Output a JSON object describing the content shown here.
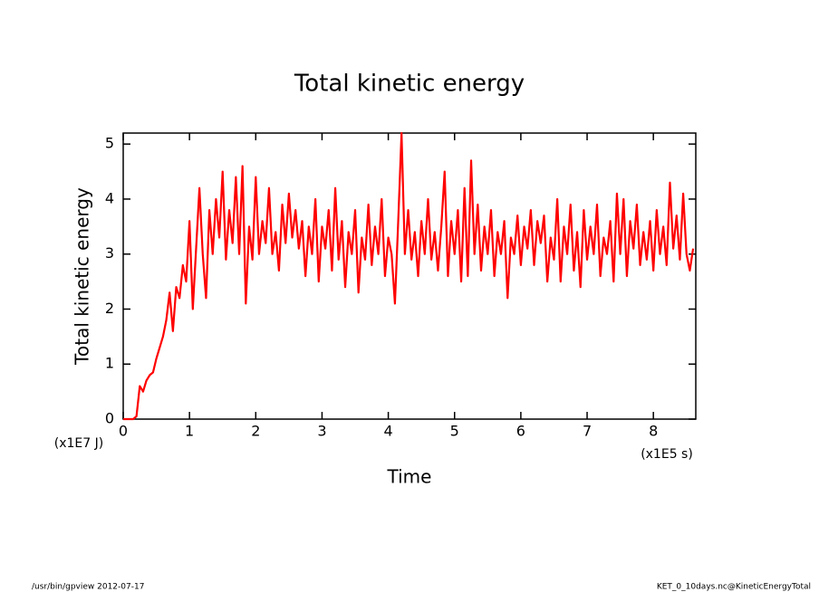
{
  "chart_data": {
    "type": "line",
    "title": "Total kinetic energy",
    "x_label": "Time",
    "y_label": "Total kinetic energy",
    "x_unit": "(x1E5 s)",
    "y_unit": "(x1E7 J)",
    "footer_left": "/usr/bin/gpview  2012-07-17",
    "footer_right": "KET_0_10days.nc@KineticEnergyTotal",
    "color": "#ff0000",
    "xlim": [
      0,
      8.64
    ],
    "ylim": [
      0,
      5.2
    ],
    "xticks": [
      0,
      1,
      2,
      3,
      4,
      5,
      6,
      7,
      8
    ],
    "yticks": [
      0,
      1,
      2,
      3,
      4,
      5
    ],
    "x": [
      0,
      0.05,
      0.1,
      0.15,
      0.2,
      0.25,
      0.3,
      0.35,
      0.4,
      0.45,
      0.5,
      0.55,
      0.6,
      0.65,
      0.7,
      0.75,
      0.8,
      0.85,
      0.9,
      0.95,
      1,
      1.05,
      1.1,
      1.15,
      1.2,
      1.25,
      1.3,
      1.35,
      1.4,
      1.45,
      1.5,
      1.55,
      1.6,
      1.65,
      1.7,
      1.75,
      1.8,
      1.85,
      1.9,
      1.95,
      2,
      2.05,
      2.1,
      2.15,
      2.2,
      2.25,
      2.3,
      2.35,
      2.4,
      2.45,
      2.5,
      2.55,
      2.6,
      2.65,
      2.7,
      2.75,
      2.8,
      2.85,
      2.9,
      2.95,
      3,
      3.05,
      3.1,
      3.15,
      3.2,
      3.25,
      3.3,
      3.35,
      3.4,
      3.45,
      3.5,
      3.55,
      3.6,
      3.65,
      3.7,
      3.75,
      3.8,
      3.85,
      3.9,
      3.95,
      4,
      4.05,
      4.1,
      4.15,
      4.2,
      4.25,
      4.3,
      4.35,
      4.4,
      4.45,
      4.5,
      4.55,
      4.6,
      4.65,
      4.7,
      4.75,
      4.8,
      4.85,
      4.9,
      4.95,
      5,
      5.05,
      5.1,
      5.15,
      5.2,
      5.25,
      5.3,
      5.35,
      5.4,
      5.45,
      5.5,
      5.55,
      5.6,
      5.65,
      5.7,
      5.75,
      5.8,
      5.85,
      5.9,
      5.95,
      6,
      6.05,
      6.1,
      6.15,
      6.2,
      6.25,
      6.3,
      6.35,
      6.4,
      6.45,
      6.5,
      6.55,
      6.6,
      6.65,
      6.7,
      6.75,
      6.8,
      6.85,
      6.9,
      6.95,
      7,
      7.05,
      7.1,
      7.15,
      7.2,
      7.25,
      7.3,
      7.35,
      7.4,
      7.45,
      7.5,
      7.55,
      7.6,
      7.65,
      7.7,
      7.75,
      7.8,
      7.85,
      7.9,
      7.95,
      8,
      8.05,
      8.1,
      8.15,
      8.2,
      8.25,
      8.3,
      8.35,
      8.4,
      8.45,
      8.5,
      8.55,
      8.6
    ],
    "values": [
      0,
      0,
      0,
      0,
      0.05,
      0.6,
      0.5,
      0.7,
      0.8,
      0.85,
      1.1,
      1.3,
      1.5,
      1.8,
      2.3,
      1.6,
      2.4,
      2.2,
      2.8,
      2.5,
      3.6,
      2.0,
      3.1,
      4.2,
      3.0,
      2.2,
      3.8,
      3.0,
      4.0,
      3.3,
      4.5,
      2.9,
      3.8,
      3.2,
      4.4,
      3.0,
      4.6,
      2.1,
      3.5,
      2.9,
      4.4,
      3.0,
      3.6,
      3.2,
      4.2,
      3.0,
      3.4,
      2.7,
      3.9,
      3.2,
      4.1,
      3.3,
      3.8,
      3.1,
      3.6,
      2.6,
      3.5,
      3.0,
      4.0,
      2.5,
      3.5,
      3.1,
      3.8,
      2.7,
      4.2,
      2.9,
      3.6,
      2.4,
      3.4,
      3.0,
      3.8,
      2.3,
      3.3,
      2.9,
      3.9,
      2.8,
      3.5,
      3.0,
      4.0,
      2.6,
      3.3,
      3.0,
      2.1,
      3.6,
      5.2,
      3.0,
      3.8,
      2.9,
      3.4,
      2.6,
      3.6,
      3.0,
      4.0,
      2.9,
      3.4,
      2.7,
      3.5,
      4.5,
      2.6,
      3.6,
      3.0,
      3.8,
      2.5,
      4.2,
      2.6,
      4.7,
      3.0,
      3.9,
      2.7,
      3.5,
      3.0,
      3.8,
      2.6,
      3.4,
      3.0,
      3.6,
      2.2,
      3.3,
      3.0,
      3.7,
      2.8,
      3.5,
      3.1,
      3.8,
      2.8,
      3.6,
      3.2,
      3.7,
      2.5,
      3.3,
      2.9,
      4.0,
      2.5,
      3.5,
      3.0,
      3.9,
      2.7,
      3.4,
      2.4,
      3.8,
      2.9,
      3.5,
      3.0,
      3.9,
      2.6,
      3.3,
      3.0,
      3.6,
      2.5,
      4.1,
      3.0,
      4.0,
      2.6,
      3.6,
      3.1,
      3.9,
      2.8,
      3.4,
      2.9,
      3.6,
      2.7,
      3.8,
      3.0,
      3.5,
      2.8,
      4.3,
      3.1,
      3.7,
      2.9,
      4.1,
      3.0,
      2.7,
      3.1
    ]
  }
}
